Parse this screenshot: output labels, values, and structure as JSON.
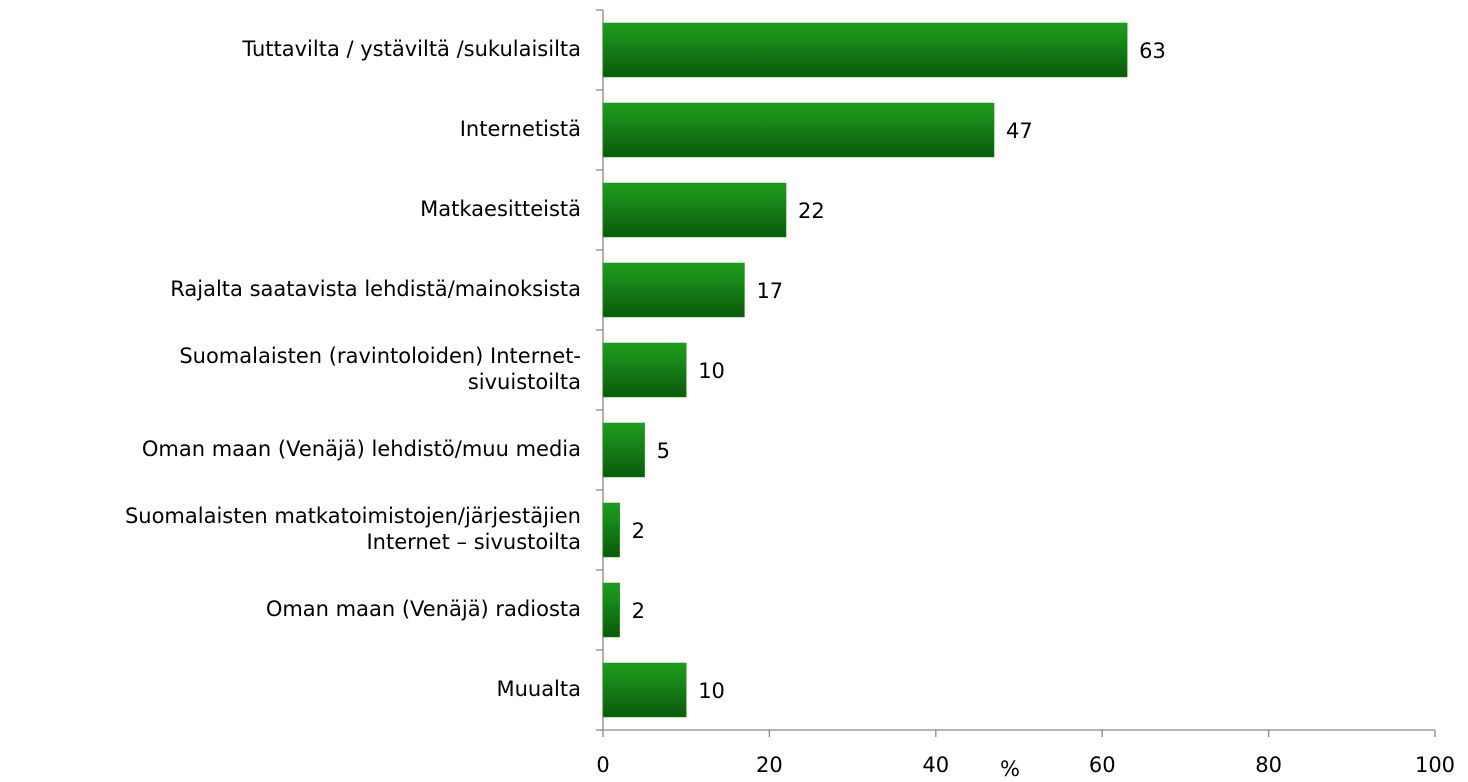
{
  "chart_data": {
    "type": "barh",
    "categories": [
      "Tuttavilta / ystäviltä /sukulaisilta",
      "Internetistä",
      "Matkaesitteistä",
      "Rajalta saatavista lehdistä/mainoksista",
      "Suomalaisten (ravintoloiden) Internet-\nsivuistoilta",
      "Oman maan (Venäjä) lehdistö/muu media",
      "Suomalaisten matkatoimistojen/järjestäjien\nInternet – sivustoilta",
      "Oman maan (Venäjä) radiosta",
      "Muualta"
    ],
    "values": [
      63,
      47,
      22,
      17,
      10,
      5,
      2,
      2,
      10
    ],
    "color": "#138a13",
    "xlabel": "%",
    "xlim": [
      0,
      100
    ],
    "xticks": [
      0,
      20,
      40,
      60,
      80,
      100
    ]
  }
}
